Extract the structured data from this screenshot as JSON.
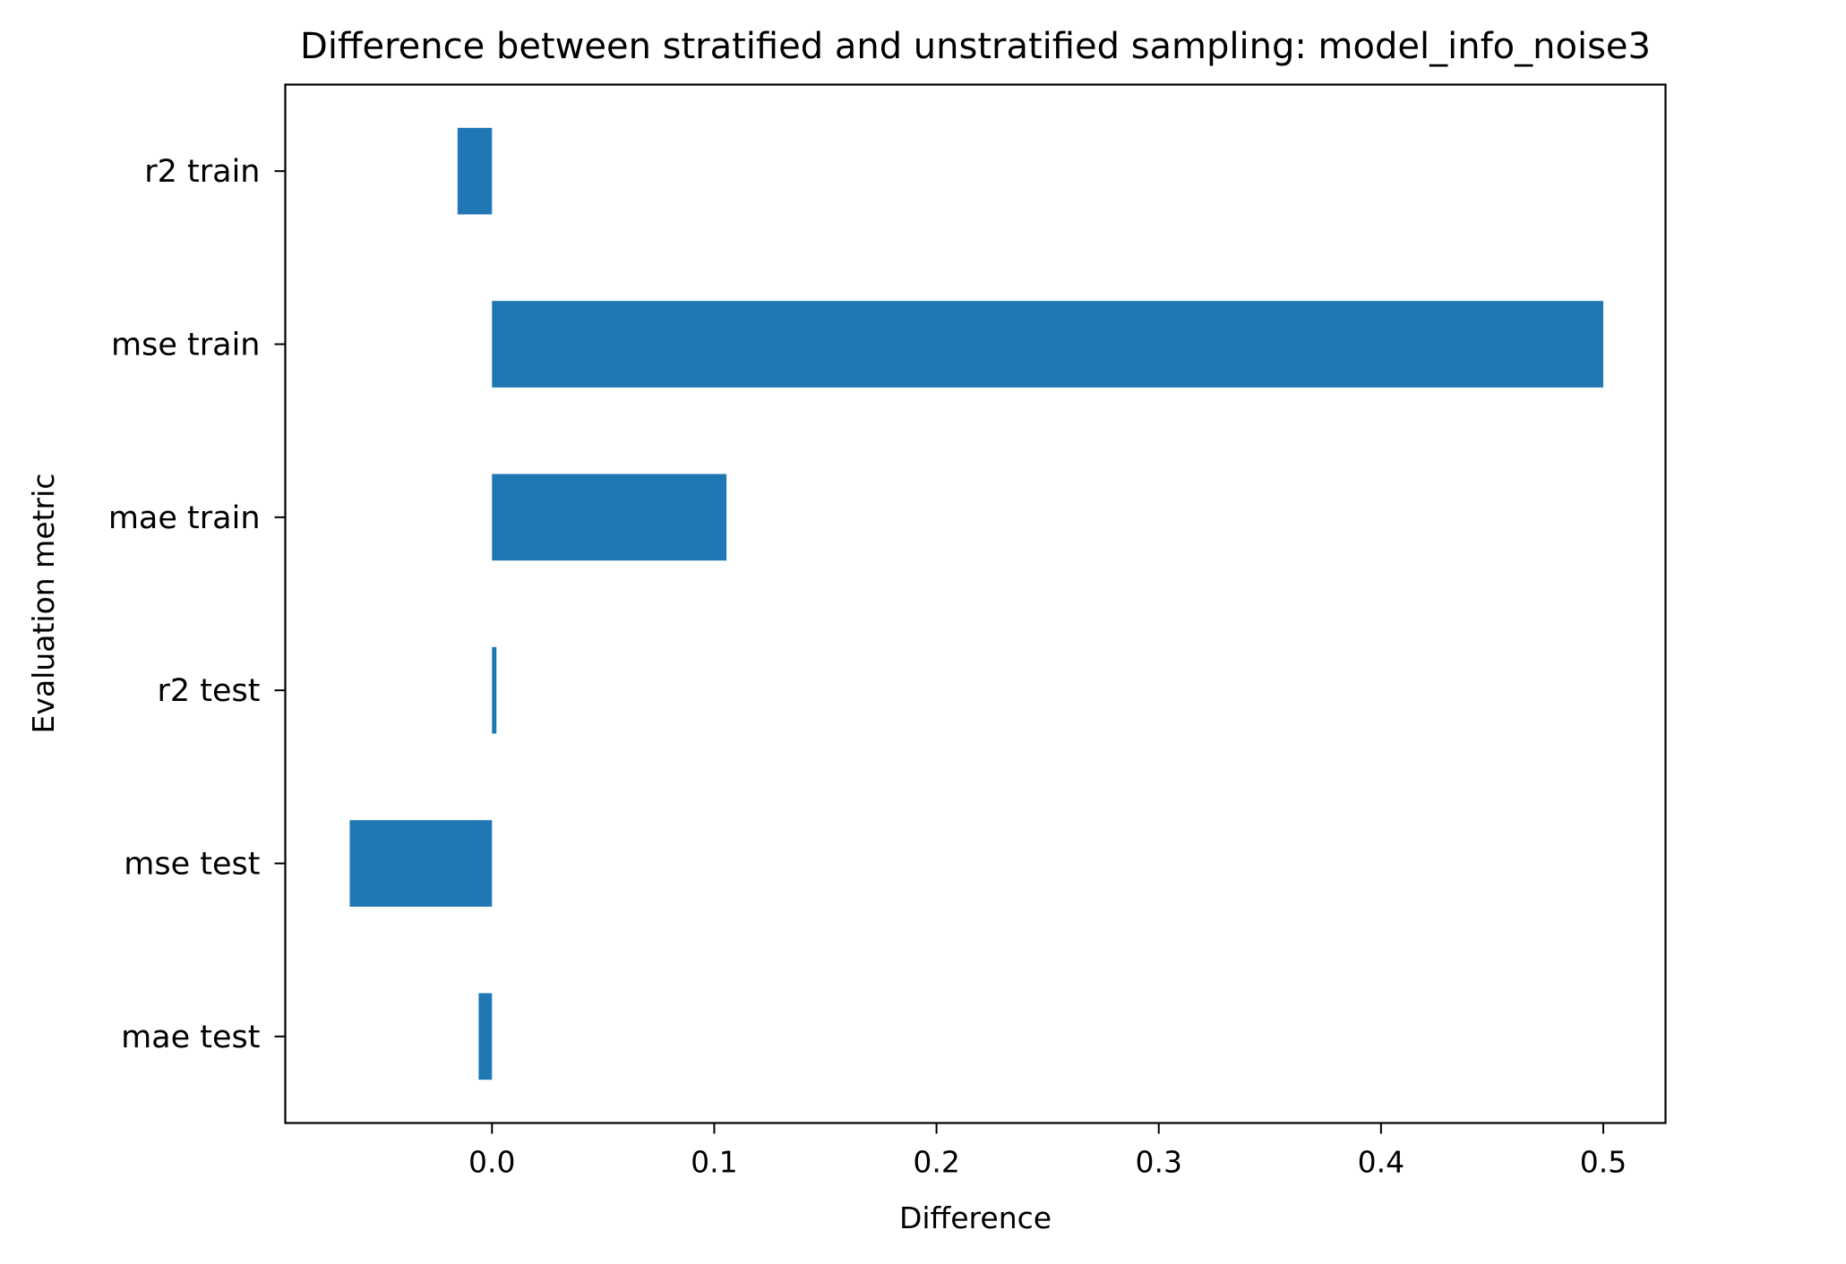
{
  "chart_data": {
    "type": "bar",
    "orientation": "horizontal",
    "title": "Difference between stratified and unstratified sampling: model_info_noise3",
    "xlabel": "Difference",
    "ylabel": "Evaluation metric",
    "categories": [
      "r2 train",
      "mse train",
      "mae train",
      "r2 test",
      "mse test",
      "mae test"
    ],
    "values": [
      -0.0155,
      0.5,
      0.1055,
      0.002,
      -0.064,
      -0.006
    ],
    "xlim": [
      -0.093,
      0.528
    ],
    "xticks": [
      0.0,
      0.1,
      0.2,
      0.3,
      0.4,
      0.5
    ],
    "xtick_labels": [
      "0.0",
      "0.1",
      "0.2",
      "0.3",
      "0.4",
      "0.5"
    ],
    "bar_color": "#1f77b4",
    "grid": false,
    "legend": false
  }
}
